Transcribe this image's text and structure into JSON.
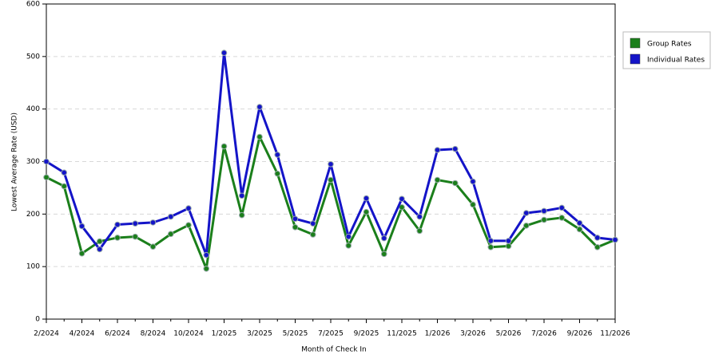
{
  "chart_data": {
    "type": "line",
    "x_label": "Month of Check In",
    "y_label": "Lowest Average Rate (USD)",
    "categories": [
      "2/2024",
      null,
      "4/2024",
      null,
      "6/2024",
      null,
      "8/2024",
      null,
      "10/2024",
      null,
      "1/2025",
      null,
      "3/2025",
      null,
      "5/2025",
      null,
      "7/2025",
      null,
      "9/2025",
      null,
      "11/2025",
      null,
      "1/2026",
      null,
      "3/2026",
      null,
      "5/2026",
      null,
      "7/2026",
      null,
      "9/2026",
      null,
      "11/2026"
    ],
    "series": [
      {
        "name": "Group Rates",
        "color": "#1b7f1b",
        "values": [
          270,
          253,
          125,
          148,
          155,
          157,
          138,
          162,
          179,
          96,
          329,
          198,
          347,
          277,
          175,
          161,
          265,
          140,
          204,
          124,
          213,
          168,
          265,
          259,
          218,
          137,
          139,
          178,
          189,
          193,
          171,
          137,
          151
        ]
      },
      {
        "name": "Individual Rates",
        "color": "#1414c8",
        "values": [
          300,
          279,
          177,
          133,
          180,
          182,
          184,
          195,
          211,
          122,
          507,
          235,
          404,
          313,
          191,
          182,
          295,
          157,
          230,
          154,
          229,
          195,
          322,
          324,
          262,
          149,
          149,
          202,
          206,
          212,
          183,
          155,
          151
        ]
      }
    ],
    "ylim": [
      0,
      600
    ],
    "yticks": [
      0,
      100,
      200,
      300,
      400,
      500,
      600
    ],
    "grid": true,
    "legend": "right"
  }
}
